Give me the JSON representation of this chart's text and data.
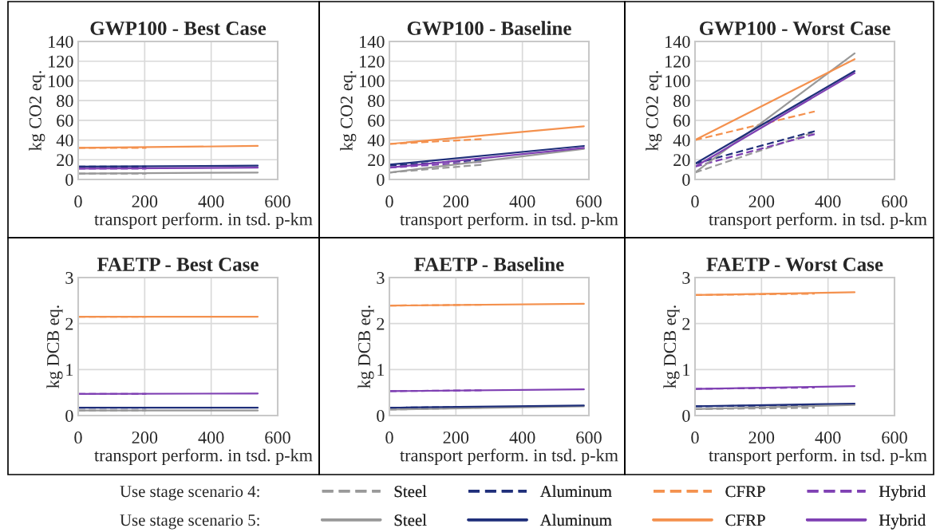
{
  "chart_data": [
    {
      "type": "line",
      "title": "GWP100 - Best Case",
      "xlabel": "transport perform. in tsd. p-km",
      "ylabel": "kg CO2 eq.",
      "xlim": [
        0,
        600
      ],
      "xticks": [
        0,
        200,
        400,
        600
      ],
      "ylim": [
        0,
        140
      ],
      "yticks": [
        0,
        20,
        40,
        60,
        80,
        100,
        120,
        140
      ],
      "grid": true,
      "legend": "bottom",
      "annotations": [
        "Use stage scenario 4:",
        "Use stage scenario 5:"
      ],
      "series": [
        {
          "name": "Steel",
          "color": "#999999",
          "line_style": "dashed",
          "x": [
            0,
            205
          ],
          "values": [
            6,
            6
          ]
        },
        {
          "name": "Aluminum",
          "color": "#1f2f7a",
          "line_style": "dashed",
          "x": [
            0,
            205
          ],
          "values": [
            13,
            13
          ]
        },
        {
          "name": "CFRP",
          "color": "#f4914e",
          "line_style": "dashed",
          "x": [
            0,
            205
          ],
          "values": [
            32,
            32
          ]
        },
        {
          "name": "Hybrid",
          "color": "#7f40b3",
          "line_style": "dashed",
          "x": [
            0,
            205
          ],
          "values": [
            11,
            11
          ]
        },
        {
          "name": "Steel",
          "color": "#999999",
          "line_style": "solid",
          "x": [
            0,
            540
          ],
          "values": [
            6,
            7
          ]
        },
        {
          "name": "Aluminum",
          "color": "#1f2f7a",
          "line_style": "solid",
          "x": [
            0,
            540
          ],
          "values": [
            13,
            14
          ]
        },
        {
          "name": "CFRP",
          "color": "#f4914e",
          "line_style": "solid",
          "x": [
            0,
            540
          ],
          "values": [
            32,
            34
          ]
        },
        {
          "name": "Hybrid",
          "color": "#7f40b3",
          "line_style": "solid",
          "x": [
            0,
            540
          ],
          "values": [
            11,
            12
          ]
        }
      ]
    },
    {
      "type": "line",
      "title": "GWP100 - Baseline",
      "xlabel": "transport perform. in tsd. p-km",
      "ylabel": "kg CO2 eq.",
      "xlim": [
        0,
        600
      ],
      "xticks": [
        0,
        200,
        400,
        600
      ],
      "ylim": [
        0,
        140
      ],
      "yticks": [
        0,
        20,
        40,
        60,
        80,
        100,
        120,
        140
      ],
      "grid": true,
      "series": [
        {
          "name": "Steel",
          "color": "#999999",
          "line_style": "dashed",
          "x": [
            0,
            280
          ],
          "values": [
            7,
            15
          ]
        },
        {
          "name": "Aluminum",
          "color": "#1f2f7a",
          "line_style": "dashed",
          "x": [
            0,
            280
          ],
          "values": [
            14,
            20
          ]
        },
        {
          "name": "CFRP",
          "color": "#f4914e",
          "line_style": "dashed",
          "x": [
            0,
            280
          ],
          "values": [
            36,
            41
          ]
        },
        {
          "name": "Hybrid",
          "color": "#7f40b3",
          "line_style": "dashed",
          "x": [
            0,
            280
          ],
          "values": [
            12,
            18
          ]
        },
        {
          "name": "Steel",
          "color": "#999999",
          "line_style": "solid",
          "x": [
            0,
            585
          ],
          "values": [
            7,
            31
          ]
        },
        {
          "name": "Aluminum",
          "color": "#1f2f7a",
          "line_style": "solid",
          "x": [
            0,
            585
          ],
          "values": [
            15,
            34
          ]
        },
        {
          "name": "CFRP",
          "color": "#f4914e",
          "line_style": "solid",
          "x": [
            0,
            585
          ],
          "values": [
            36,
            54
          ]
        },
        {
          "name": "Hybrid",
          "color": "#7f40b3",
          "line_style": "solid",
          "x": [
            0,
            585
          ],
          "values": [
            12,
            32
          ]
        }
      ]
    },
    {
      "type": "line",
      "title": "GWP100 - Worst Case",
      "xlabel": "transport perform. in tsd. p-km",
      "ylabel": "kg CO2 eq.",
      "xlim": [
        0,
        600
      ],
      "xticks": [
        0,
        200,
        400,
        600
      ],
      "ylim": [
        0,
        140
      ],
      "yticks": [
        0,
        20,
        40,
        60,
        80,
        100,
        120,
        140
      ],
      "grid": true,
      "series": [
        {
          "name": "Steel",
          "color": "#999999",
          "line_style": "dashed",
          "x": [
            0,
            360
          ],
          "values": [
            7,
            48
          ]
        },
        {
          "name": "Aluminum",
          "color": "#1f2f7a",
          "line_style": "dashed",
          "x": [
            0,
            360
          ],
          "values": [
            16,
            49
          ]
        },
        {
          "name": "CFRP",
          "color": "#f4914e",
          "line_style": "dashed",
          "x": [
            0,
            360
          ],
          "values": [
            40,
            69
          ]
        },
        {
          "name": "Hybrid",
          "color": "#7f40b3",
          "line_style": "dashed",
          "x": [
            0,
            360
          ],
          "values": [
            13,
            46
          ]
        },
        {
          "name": "Steel",
          "color": "#999999",
          "line_style": "solid",
          "x": [
            0,
            480
          ],
          "values": [
            7,
            128
          ]
        },
        {
          "name": "Hybrid",
          "color": "#7f40b3",
          "line_style": "solid",
          "x": [
            0,
            480
          ],
          "values": [
            13,
            108
          ]
        },
        {
          "name": "Aluminum",
          "color": "#1f2f7a",
          "line_style": "solid",
          "x": [
            0,
            480
          ],
          "values": [
            16,
            110
          ]
        },
        {
          "name": "CFRP",
          "color": "#f4914e",
          "line_style": "solid",
          "x": [
            0,
            480
          ],
          "values": [
            40,
            122
          ]
        }
      ]
    },
    {
      "type": "line",
      "title": "FAETP - Best Case",
      "xlabel": "transport perform. in tsd. p-km",
      "ylabel": "kg DCB eq.",
      "xlim": [
        0,
        600
      ],
      "xticks": [
        0,
        200,
        400,
        600
      ],
      "ylim": [
        0,
        3
      ],
      "yticks": [
        0,
        1,
        2,
        3
      ],
      "grid": true,
      "series": [
        {
          "name": "Steel",
          "color": "#999999",
          "line_style": "dashed",
          "x": [
            0,
            205
          ],
          "values": [
            0.11,
            0.11
          ]
        },
        {
          "name": "Aluminum",
          "color": "#1f2f7a",
          "line_style": "dashed",
          "x": [
            0,
            205
          ],
          "values": [
            0.17,
            0.17
          ]
        },
        {
          "name": "CFRP",
          "color": "#f4914e",
          "line_style": "dashed",
          "x": [
            0,
            205
          ],
          "values": [
            2.15,
            2.15
          ]
        },
        {
          "name": "Hybrid",
          "color": "#7f40b3",
          "line_style": "dashed",
          "x": [
            0,
            205
          ],
          "values": [
            0.47,
            0.47
          ]
        },
        {
          "name": "Steel",
          "color": "#999999",
          "line_style": "solid",
          "x": [
            0,
            540
          ],
          "values": [
            0.11,
            0.11
          ]
        },
        {
          "name": "Aluminum",
          "color": "#1f2f7a",
          "line_style": "solid",
          "x": [
            0,
            540
          ],
          "values": [
            0.17,
            0.17
          ]
        },
        {
          "name": "CFRP",
          "color": "#f4914e",
          "line_style": "solid",
          "x": [
            0,
            540
          ],
          "values": [
            2.15,
            2.15
          ]
        },
        {
          "name": "Hybrid",
          "color": "#7f40b3",
          "line_style": "solid",
          "x": [
            0,
            540
          ],
          "values": [
            0.47,
            0.48
          ]
        }
      ]
    },
    {
      "type": "line",
      "title": "FAETP - Baseline",
      "xlabel": "transport perform. in tsd. p-km",
      "ylabel": "kg DCB eq.",
      "xlim": [
        0,
        600
      ],
      "xticks": [
        0,
        200,
        400,
        600
      ],
      "ylim": [
        0,
        3
      ],
      "yticks": [
        0,
        1,
        2,
        3
      ],
      "grid": true,
      "series": [
        {
          "name": "Steel",
          "color": "#999999",
          "line_style": "dashed",
          "x": [
            0,
            280
          ],
          "values": [
            0.13,
            0.17
          ]
        },
        {
          "name": "Aluminum",
          "color": "#1f2f7a",
          "line_style": "dashed",
          "x": [
            0,
            280
          ],
          "values": [
            0.17,
            0.19
          ]
        },
        {
          "name": "CFRP",
          "color": "#f4914e",
          "line_style": "dashed",
          "x": [
            0,
            280
          ],
          "values": [
            2.39,
            2.41
          ]
        },
        {
          "name": "Hybrid",
          "color": "#7f40b3",
          "line_style": "dashed",
          "x": [
            0,
            280
          ],
          "values": [
            0.53,
            0.55
          ]
        },
        {
          "name": "Steel",
          "color": "#999999",
          "line_style": "solid",
          "x": [
            0,
            585
          ],
          "values": [
            0.13,
            0.2
          ]
        },
        {
          "name": "Aluminum",
          "color": "#1f2f7a",
          "line_style": "solid",
          "x": [
            0,
            585
          ],
          "values": [
            0.17,
            0.22
          ]
        },
        {
          "name": "CFRP",
          "color": "#f4914e",
          "line_style": "solid",
          "x": [
            0,
            585
          ],
          "values": [
            2.39,
            2.43
          ]
        },
        {
          "name": "Hybrid",
          "color": "#7f40b3",
          "line_style": "solid",
          "x": [
            0,
            585
          ],
          "values": [
            0.53,
            0.57
          ]
        }
      ]
    },
    {
      "type": "line",
      "title": "FAETP - Worst Case",
      "xlabel": "transport perform. in tsd. p-km",
      "ylabel": "kg DCB eq.",
      "xlim": [
        0,
        600
      ],
      "xticks": [
        0,
        200,
        400,
        600
      ],
      "ylim": [
        0,
        3
      ],
      "yticks": [
        0,
        1,
        2,
        3
      ],
      "grid": true,
      "series": [
        {
          "name": "Steel",
          "color": "#999999",
          "line_style": "dashed",
          "x": [
            0,
            360
          ],
          "values": [
            0.14,
            0.17
          ]
        },
        {
          "name": "Aluminum",
          "color": "#1f2f7a",
          "line_style": "dashed",
          "x": [
            0,
            360
          ],
          "values": [
            0.2,
            0.23
          ]
        },
        {
          "name": "CFRP",
          "color": "#f4914e",
          "line_style": "dashed",
          "x": [
            0,
            360
          ],
          "values": [
            2.62,
            2.65
          ]
        },
        {
          "name": "Hybrid",
          "color": "#7f40b3",
          "line_style": "dashed",
          "x": [
            0,
            360
          ],
          "values": [
            0.58,
            0.61
          ]
        },
        {
          "name": "Steel",
          "color": "#999999",
          "line_style": "solid",
          "x": [
            0,
            480
          ],
          "values": [
            0.14,
            0.23
          ]
        },
        {
          "name": "Aluminum",
          "color": "#1f2f7a",
          "line_style": "solid",
          "x": [
            0,
            480
          ],
          "values": [
            0.2,
            0.26
          ]
        },
        {
          "name": "CFRP",
          "color": "#f4914e",
          "line_style": "solid",
          "x": [
            0,
            480
          ],
          "values": [
            2.62,
            2.68
          ]
        },
        {
          "name": "Hybrid",
          "color": "#7f40b3",
          "line_style": "solid",
          "x": [
            0,
            480
          ],
          "values": [
            0.58,
            0.64
          ]
        }
      ]
    }
  ]
}
